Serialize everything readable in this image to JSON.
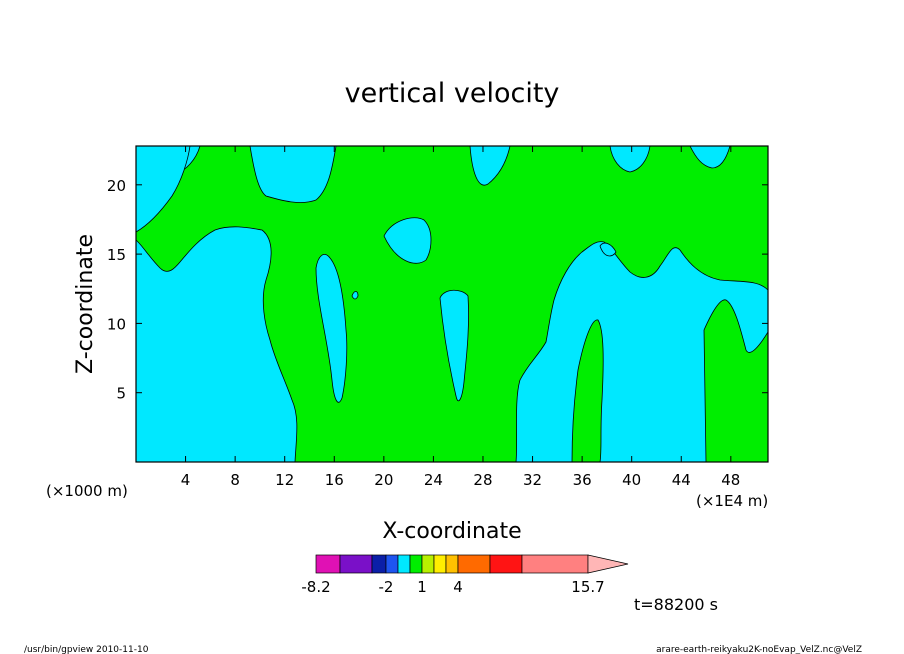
{
  "chart_data": {
    "type": "heatmap",
    "title": "vertical velocity",
    "xlabel": "X-coordinate",
    "ylabel": "Z-coordinate",
    "x_scale_note": "(×1000 m)",
    "x_unit_note": "(×1E4 m)",
    "x_ticks": [
      "4",
      "8",
      "12",
      "16",
      "20",
      "24",
      "28",
      "32",
      "36",
      "40",
      "44",
      "48"
    ],
    "y_ticks": [
      "5",
      "10",
      "15",
      "20"
    ],
    "xlim": [
      0,
      51
    ],
    "ylim": [
      0,
      22.8
    ],
    "colorbar": {
      "labels": [
        "-8.2",
        "-2",
        "1",
        "4",
        "15.7"
      ],
      "colors": [
        "#e011b4",
        "#7a10c8",
        "#0b1fa8",
        "#1e55f0",
        "#00e8ff",
        "#00ee00",
        "#b8f000",
        "#ffee00",
        "#ffc000",
        "#ff6a00",
        "#ff1414",
        "#ff8080",
        "#ffb6b6"
      ]
    },
    "field_colors": {
      "negative": "#00e8ff",
      "positive": "#00ee00"
    },
    "time_label": "t=88200 s"
  },
  "footer": {
    "left": "/usr/bin/gpview  2010-11-10",
    "right": "arare-earth-reikyaku2K-noEvap_VelZ.nc@VelZ"
  }
}
